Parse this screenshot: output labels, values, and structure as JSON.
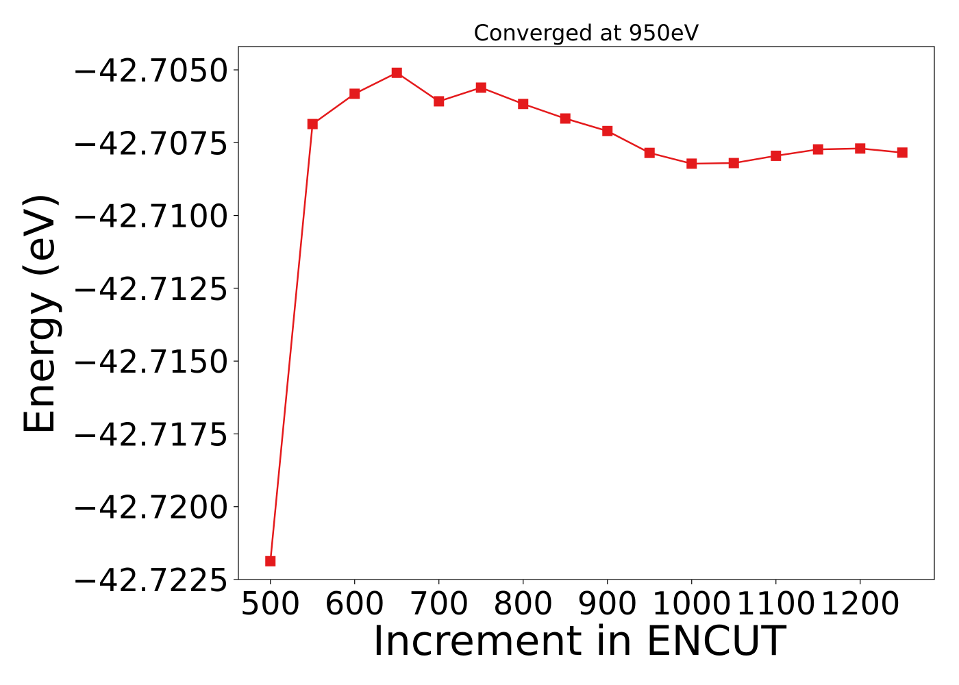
{
  "chart_data": {
    "type": "line",
    "title": "Converged at 950eV",
    "xlabel": "Increment in ENCUT",
    "ylabel": "Energy (eV)",
    "x": [
      500,
      550,
      600,
      650,
      700,
      750,
      800,
      850,
      900,
      950,
      1000,
      1050,
      1100,
      1150,
      1200,
      1250
    ],
    "series": [
      {
        "values": [
          -42.72187,
          -42.70686,
          -42.70582,
          -42.7051,
          -42.70608,
          -42.70561,
          -42.70617,
          -42.70667,
          -42.7071,
          -42.70785,
          -42.70822,
          -42.7082,
          -42.70795,
          -42.70773,
          -42.7077,
          -42.70784
        ],
        "color": "#e41a1c",
        "marker": "square"
      }
    ],
    "xticks": [
      500,
      600,
      700,
      800,
      900,
      1000,
      1100,
      1200
    ],
    "xtick_labels": [
      "500",
      "600",
      "700",
      "800",
      "900",
      "1000",
      "1100",
      "1200"
    ],
    "yticks": [
      -42.705,
      -42.7075,
      -42.71,
      -42.7125,
      -42.715,
      -42.7175,
      -42.72,
      -42.7225
    ],
    "ytick_labels": [
      "−42.7050",
      "−42.7075",
      "−42.7100",
      "−42.7125",
      "−42.7150",
      "−42.7175",
      "−42.7200",
      "−42.7225"
    ],
    "xlim": [
      462,
      1288
    ],
    "ylim": [
      -42.7225,
      -42.7042
    ],
    "grid": false,
    "legend": "none"
  }
}
